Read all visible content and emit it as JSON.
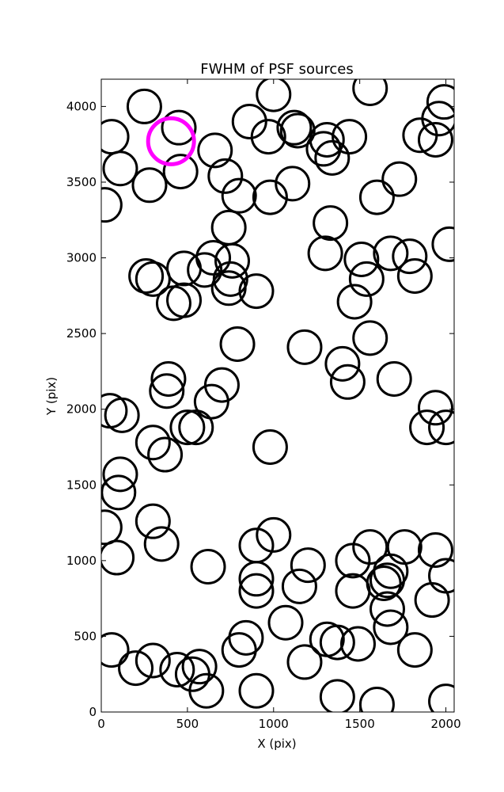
{
  "chart_data": {
    "type": "scatter",
    "title": "FWHM of PSF sources",
    "xlabel": "X (pix)",
    "ylabel": "Y (pix)",
    "xlim": [
      0,
      2048
    ],
    "ylim": [
      0,
      4180
    ],
    "xticks": [
      0,
      500,
      1000,
      1500,
      2000
    ],
    "yticks": [
      0,
      500,
      1000,
      1500,
      2000,
      2500,
      3000,
      3500,
      4000
    ],
    "grid": false,
    "marker_color": "#000000",
    "highlight_color": "#ff00ff",
    "highlight": {
      "x": 405,
      "y": 3770
    },
    "sources": [
      [
        250,
        4000
      ],
      [
        450,
        3860
      ],
      [
        60,
        3800
      ],
      [
        1000,
        4080
      ],
      [
        1560,
        4120
      ],
      [
        860,
        3900
      ],
      [
        970,
        3800
      ],
      [
        1120,
        3860
      ],
      [
        1140,
        3840
      ],
      [
        1310,
        3780
      ],
      [
        1440,
        3800
      ],
      [
        1290,
        3720
      ],
      [
        1340,
        3660
      ],
      [
        1990,
        4030
      ],
      [
        1960,
        3920
      ],
      [
        1940,
        3780
      ],
      [
        1850,
        3810
      ],
      [
        660,
        3710
      ],
      [
        110,
        3590
      ],
      [
        460,
        3570
      ],
      [
        280,
        3480
      ],
      [
        720,
        3540
      ],
      [
        800,
        3410
      ],
      [
        980,
        3400
      ],
      [
        1110,
        3490
      ],
      [
        1730,
        3520
      ],
      [
        1600,
        3400
      ],
      [
        20,
        3350
      ],
      [
        2020,
        3090
      ],
      [
        740,
        3200
      ],
      [
        1330,
        3230
      ],
      [
        1300,
        3030
      ],
      [
        1510,
        2990
      ],
      [
        1680,
        3030
      ],
      [
        1790,
        3010
      ],
      [
        1820,
        2880
      ],
      [
        1540,
        2860
      ],
      [
        1470,
        2710
      ],
      [
        650,
        3000
      ],
      [
        760,
        2980
      ],
      [
        750,
        2860
      ],
      [
        740,
        2800
      ],
      [
        480,
        2930
      ],
      [
        600,
        2920
      ],
      [
        260,
        2880
      ],
      [
        300,
        2860
      ],
      [
        420,
        2700
      ],
      [
        480,
        2720
      ],
      [
        900,
        2780
      ],
      [
        790,
        2430
      ],
      [
        1180,
        2410
      ],
      [
        1560,
        2470
      ],
      [
        1400,
        2300
      ],
      [
        1430,
        2180
      ],
      [
        1700,
        2200
      ],
      [
        390,
        2200
      ],
      [
        380,
        2120
      ],
      [
        700,
        2160
      ],
      [
        640,
        2050
      ],
      [
        50,
        1990
      ],
      [
        120,
        1960
      ],
      [
        1940,
        2010
      ],
      [
        1890,
        1880
      ],
      [
        2000,
        1880
      ],
      [
        500,
        1880
      ],
      [
        550,
        1880
      ],
      [
        300,
        1780
      ],
      [
        370,
        1700
      ],
      [
        980,
        1750
      ],
      [
        110,
        1570
      ],
      [
        100,
        1450
      ],
      [
        20,
        1220
      ],
      [
        300,
        1260
      ],
      [
        350,
        1110
      ],
      [
        90,
        1020
      ],
      [
        620,
        960
      ],
      [
        900,
        1100
      ],
      [
        1000,
        1170
      ],
      [
        1200,
        970
      ],
      [
        1150,
        830
      ],
      [
        900,
        880
      ],
      [
        900,
        800
      ],
      [
        1460,
        1000
      ],
      [
        1560,
        1090
      ],
      [
        1460,
        800
      ],
      [
        1640,
        850
      ],
      [
        1660,
        870
      ],
      [
        1680,
        930
      ],
      [
        1760,
        1090
      ],
      [
        1940,
        1070
      ],
      [
        2000,
        900
      ],
      [
        1920,
        740
      ],
      [
        1660,
        680
      ],
      [
        1680,
        560
      ],
      [
        1820,
        410
      ],
      [
        60,
        410
      ],
      [
        200,
        290
      ],
      [
        300,
        340
      ],
      [
        440,
        280
      ],
      [
        530,
        250
      ],
      [
        570,
        300
      ],
      [
        610,
        140
      ],
      [
        800,
        410
      ],
      [
        840,
        490
      ],
      [
        900,
        140
      ],
      [
        1070,
        590
      ],
      [
        1180,
        330
      ],
      [
        1310,
        480
      ],
      [
        1370,
        460
      ],
      [
        1490,
        450
      ],
      [
        1370,
        100
      ],
      [
        1600,
        50
      ],
      [
        2000,
        70
      ]
    ]
  }
}
